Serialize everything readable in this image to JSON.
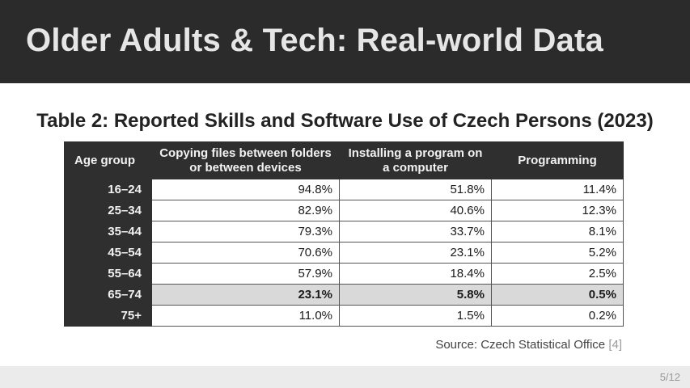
{
  "slide": {
    "title": "Older Adults & Tech: Real-world Data",
    "page_number": "5/12"
  },
  "table": {
    "caption": "Table 2: Reported Skills and Software Use of Czech Persons (2023)",
    "headers": {
      "age": "Age group",
      "copy": "Copying files between folders or between devices",
      "install": "Installing a program on a computer",
      "prog": "Programming"
    },
    "rows": [
      {
        "age": "16–24",
        "copy": "94.8%",
        "install": "51.8%",
        "prog": "11.4%"
      },
      {
        "age": "25–34",
        "copy": "82.9%",
        "install": "40.6%",
        "prog": "12.3%"
      },
      {
        "age": "35–44",
        "copy": "79.3%",
        "install": "33.7%",
        "prog": "8.1%"
      },
      {
        "age": "45–54",
        "copy": "70.6%",
        "install": "23.1%",
        "prog": "5.2%"
      },
      {
        "age": "55–64",
        "copy": "57.9%",
        "install": "18.4%",
        "prog": "2.5%"
      },
      {
        "age": "65–74",
        "copy": "23.1%",
        "install": "5.8%",
        "prog": "0.5%"
      },
      {
        "age": "75+",
        "copy": "11.0%",
        "install": "1.5%",
        "prog": "0.2%"
      }
    ],
    "highlighted_row": "65–74"
  },
  "source": {
    "label": "Source: Czech Statistical Office",
    "ref": "[4]"
  }
}
